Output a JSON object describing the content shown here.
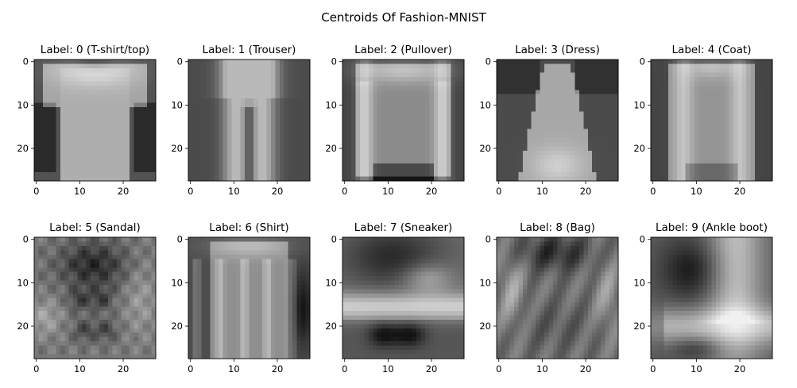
{
  "figure": {
    "title": "Centroids Of Fashion-MNIST"
  },
  "chart_data": {
    "type": "heatmap",
    "colormap": "gray",
    "image_size": [
      28,
      28
    ],
    "x_ticks": [
      0,
      10,
      20
    ],
    "y_ticks": [
      0,
      10,
      20
    ],
    "xlim": [
      -0.5,
      27.5
    ],
    "ylim": [
      27.5,
      -0.5
    ],
    "grid": false,
    "panels": [
      {
        "title": "Label: 0 (T-shirt/top)",
        "label": 0,
        "class": "T-shirt/top"
      },
      {
        "title": "Label: 1 (Trouser)",
        "label": 1,
        "class": "Trouser"
      },
      {
        "title": "Label: 2 (Pullover)",
        "label": 2,
        "class": "Pullover"
      },
      {
        "title": "Label: 3 (Dress)",
        "label": 3,
        "class": "Dress"
      },
      {
        "title": "Label: 4 (Coat)",
        "label": 4,
        "class": "Coat"
      },
      {
        "title": "Label: 5 (Sandal)",
        "label": 5,
        "class": "Sandal"
      },
      {
        "title": "Label: 6 (Shirt)",
        "label": 6,
        "class": "Shirt"
      },
      {
        "title": "Label: 7 (Sneaker)",
        "label": 7,
        "class": "Sneaker"
      },
      {
        "title": "Label: 8 (Bag)",
        "label": 8,
        "class": "Bag"
      },
      {
        "title": "Label: 9 (Ankle boot)",
        "label": 9,
        "class": "Ankle boot"
      }
    ]
  }
}
